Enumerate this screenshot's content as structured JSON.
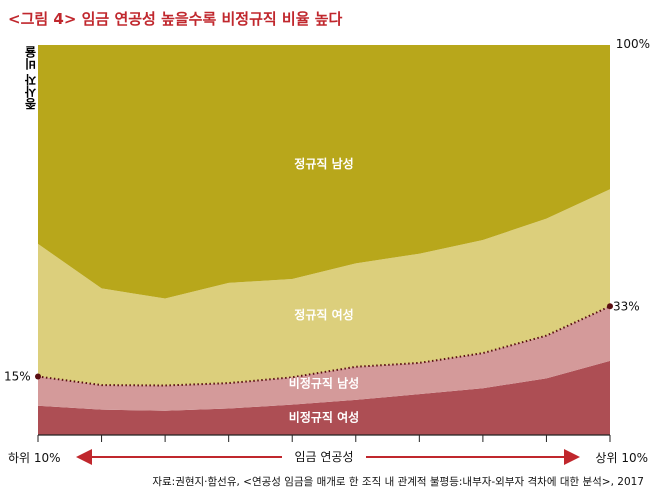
{
  "title": "<그림 4> 임금 연공성 높을수록 비정규직 비율 높다",
  "ylabel": "종사자 비율",
  "source": "자료:권현지·함선유, <연공성 임금을 매개로 한 조직 내 관계적 불평등:내부자-외부자 격차에 대한 분석>, 2017",
  "chart_data": {
    "type": "area",
    "stacked": true,
    "ylim": [
      0,
      100
    ],
    "xlabel": "임금 연공성",
    "x_left_label": "하위 10%",
    "x_right_label": "상위 10%",
    "left_annotation": "15%",
    "right_annotation": "33%",
    "top_annotation": "100%",
    "x": [
      0,
      1,
      2,
      3,
      4,
      5,
      6,
      7,
      8,
      9
    ],
    "series": [
      {
        "name": "비정규직 여성",
        "color": "#ad4e54",
        "values": [
          7.5,
          6.5,
          6.2,
          6.8,
          7.8,
          9.0,
          10.5,
          12.0,
          14.5,
          19.0
        ]
      },
      {
        "name": "비정규직 남성",
        "color": "#d49a9a",
        "values": [
          7.5,
          6.3,
          6.5,
          6.5,
          7.0,
          8.5,
          8.0,
          9.0,
          11.0,
          14.0
        ]
      },
      {
        "name": "정규직 여성",
        "color": "#dccf7c",
        "values": [
          34.0,
          24.8,
          22.3,
          25.7,
          25.2,
          26.5,
          28.0,
          29.0,
          30.0,
          30.0
        ]
      },
      {
        "name": "정규직 남성",
        "color": "#b8a71b",
        "values": [
          51.0,
          62.4,
          65.0,
          61.0,
          60.0,
          56.0,
          53.5,
          50.0,
          44.5,
          37.0
        ]
      }
    ]
  }
}
